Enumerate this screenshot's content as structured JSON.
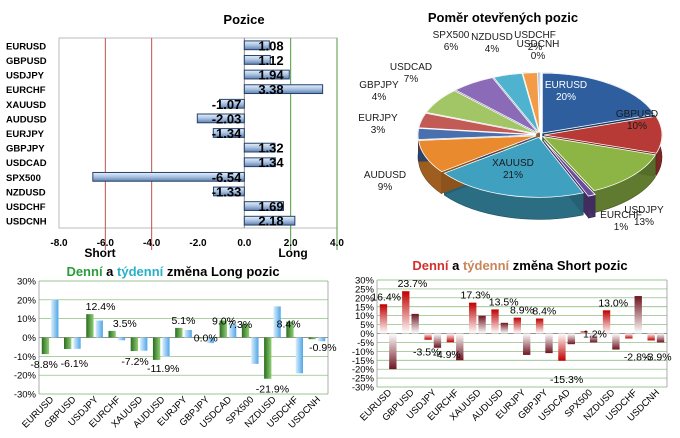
{
  "colors": {
    "short_line": "#c0504d",
    "long_line": "#4f9a3f",
    "bar_fill": "#b9cde6",
    "bar_edge": "#24416a",
    "green_bar": "#3d8a2f",
    "blue_bar": "#4fa6e8",
    "red_bar": "#c00000",
    "dark_bar": "#7b1a22",
    "title_green": "#2a9d3a",
    "title_cyan": "#27b0c9",
    "title_red": "#d32f2f",
    "title_brown": "#c8865a"
  },
  "chart_data": [
    {
      "type": "bar",
      "orientation": "horizontal",
      "title": "Pozice",
      "categories": [
        "EURUSD",
        "GBPUSD",
        "USDJPY",
        "EURCHF",
        "XAUUSD",
        "AUDUSD",
        "EURJPY",
        "GBPJPY",
        "USDCAD",
        "SPX500",
        "NZDUSD",
        "USDCHF",
        "USDCNH"
      ],
      "values": [
        1.08,
        1.12,
        1.94,
        3.38,
        -1.07,
        -2.03,
        -1.34,
        1.32,
        1.34,
        -6.54,
        -1.33,
        1.69,
        2.18
      ],
      "value_labels": [
        "1.08",
        "1.12",
        "1.94",
        "3.38",
        "-1.07",
        "-2.03",
        "-1.34",
        "1.32",
        "1.34",
        "-6.54",
        "-1.33",
        "1.69",
        "2.18"
      ],
      "xlim": [
        -8.0,
        4.0
      ],
      "xticks": [
        "-8.0",
        "-6.0",
        "-4.0",
        "-2.0",
        "0.0",
        "2.0",
        "4.0"
      ],
      "xtick_values": [
        -8,
        -6,
        -4,
        -2,
        0,
        2,
        4
      ],
      "annotations": {
        "short": "Short",
        "long": "Long"
      },
      "reference_lines": [
        -6,
        -4,
        2
      ]
    },
    {
      "type": "pie",
      "title": "Poměr  otevřených pozic",
      "slices": [
        {
          "label": "EURUSD",
          "pct": "20%",
          "value": 20,
          "color": "#2e5e9e"
        },
        {
          "label": "GBPUSD",
          "pct": "10%",
          "value": 10,
          "color": "#b73a36"
        },
        {
          "label": "USDJPY",
          "pct": "13%",
          "value": 13,
          "color": "#8db545"
        },
        {
          "label": "EURCHF",
          "pct": "1%",
          "value": 1,
          "color": "#6a4a9c"
        },
        {
          "label": "XAUUSD",
          "pct": "21%",
          "value": 21,
          "color": "#3fa0c0"
        },
        {
          "label": "AUDUSD",
          "pct": "9%",
          "value": 9,
          "color": "#e98a2f"
        },
        {
          "label": "EURJPY",
          "pct": "3%",
          "value": 3,
          "color": "#4a6fae"
        },
        {
          "label": "GBPJPY",
          "pct": "4%",
          "value": 4,
          "color": "#c25a56"
        },
        {
          "label": "USDCAD",
          "pct": "7%",
          "value": 7,
          "color": "#a2c566"
        },
        {
          "label": "SPX500",
          "pct": "6%",
          "value": 6,
          "color": "#8b6bb8"
        },
        {
          "label": "NZDUSD",
          "pct": "4%",
          "value": 4,
          "color": "#4fb3cf"
        },
        {
          "label": "USDCHF",
          "pct": "2%",
          "value": 2,
          "color": "#f29b48"
        },
        {
          "label": "USDCNH",
          "pct": "0%",
          "value": 0.3,
          "color": "#9db3d6"
        }
      ]
    },
    {
      "type": "bar",
      "title_parts": [
        "Denní",
        " a ",
        "týdenní",
        " změna Long pozic"
      ],
      "categories": [
        "EURUSD",
        "GBPUSD",
        "USDJPY",
        "EURCHF",
        "XAUUSD",
        "AUDUSD",
        "EURJPY",
        "GBPJPY",
        "USDCAD",
        "SPX500",
        "NZDUSD",
        "USDCHF",
        "USDCNH"
      ],
      "series": [
        {
          "name": "Denní",
          "values": [
            -8.8,
            -6.1,
            12.4,
            3.5,
            -7.2,
            -11.9,
            5.1,
            0.0,
            9.0,
            7.3,
            -21.9,
            8.4,
            -0.9
          ]
        },
        {
          "name": "týdenní",
          "values": [
            20.0,
            -6.0,
            9.0,
            -1.5,
            -7.0,
            -10.0,
            4.0,
            -3.0,
            7.0,
            -14.0,
            16.5,
            -19.0,
            -2.0
          ]
        }
      ],
      "value_labels": [
        "-8.8%",
        "-6.1%",
        "12.4%",
        "3.5%",
        "-7.2%",
        "-11.9%",
        "5.1%",
        "0.0%",
        "9.0%",
        "7.3%",
        "-21.9%",
        "8.4%",
        "-0.9%"
      ],
      "ylim": [
        -30,
        30
      ],
      "yticks": [
        "30%",
        "20%",
        "10%",
        "0%",
        "-10%",
        "-20%",
        "-30%"
      ],
      "ytick_values": [
        30,
        20,
        10,
        0,
        -10,
        -20,
        -30
      ]
    },
    {
      "type": "bar",
      "title_parts": [
        "Denní",
        " a ",
        "týdenní",
        " změna Short pozic"
      ],
      "categories": [
        "EURUSD",
        "GBPUSD",
        "USDJPY",
        "EURCHF",
        "XAUUSD",
        "AUDUSD",
        "EURJPY",
        "GBPJPY",
        "USDCAD",
        "SPX500",
        "NZDUSD",
        "USDCHF",
        "USDCNH"
      ],
      "series": [
        {
          "name": "Denní",
          "values": [
            16.4,
            23.7,
            -3.5,
            -4.9,
            17.3,
            13.5,
            8.9,
            8.4,
            -15.3,
            1.2,
            13.0,
            -2.8,
            -3.9
          ]
        },
        {
          "name": "týdenní",
          "values": [
            -20.0,
            11.0,
            -8.0,
            -15.0,
            10.0,
            6.0,
            -12.0,
            -11.0,
            -6.0,
            -5.0,
            -9.0,
            21.0,
            -5.0
          ]
        }
      ],
      "value_labels": [
        "16.4%",
        "23.7%",
        "-3.5%",
        "-4.9%",
        "17.3%",
        "13.5%",
        "8.9%",
        "8.4%",
        "-15.3%",
        "1.2%",
        "13.0%",
        "-2.8%",
        "-3.9%"
      ],
      "ylim": [
        -30,
        30
      ],
      "yticks": [
        "30%",
        "25%",
        "20%",
        "15%",
        "10%",
        "5%",
        "0%",
        "-5%",
        "-10%",
        "-15%",
        "-20%",
        "-25%",
        "-30%"
      ],
      "ytick_values": [
        30,
        25,
        20,
        15,
        10,
        5,
        0,
        -5,
        -10,
        -15,
        -20,
        -25,
        -30
      ]
    }
  ]
}
